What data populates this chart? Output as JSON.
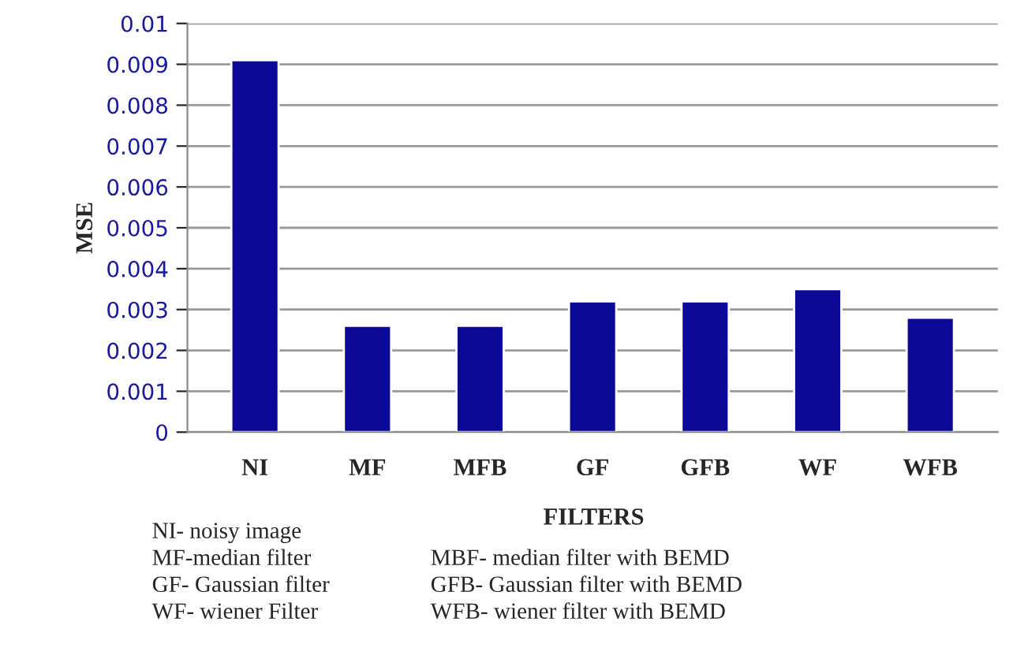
{
  "chart_data": {
    "type": "bar",
    "xlabel": "FILTERS",
    "ylabel": "MSE",
    "categories": [
      "NI",
      "MF",
      "MFB",
      "GF",
      "GFB",
      "WF",
      "WFB"
    ],
    "values": [
      0.0091,
      0.0026,
      0.0026,
      0.0032,
      0.0032,
      0.0035,
      0.0028
    ],
    "color": "#0a0a96",
    "ylim": [
      0,
      0.01
    ],
    "yticks": [
      {
        "value": 0,
        "label": "0"
      },
      0.001,
      0.002,
      0.003,
      0.004,
      0.005,
      0.006,
      0.007,
      0.008,
      0.009,
      0.01
    ],
    "grid": "y",
    "annotations": [
      "NI- noisy image",
      "MF-median filter",
      "MBF- median filter with BEMD",
      "GF- Gaussian filter",
      "GFB- Gaussian filter with BEMD",
      "WF- wiener Filter",
      "WFB- wiener filter with BEMD"
    ]
  }
}
